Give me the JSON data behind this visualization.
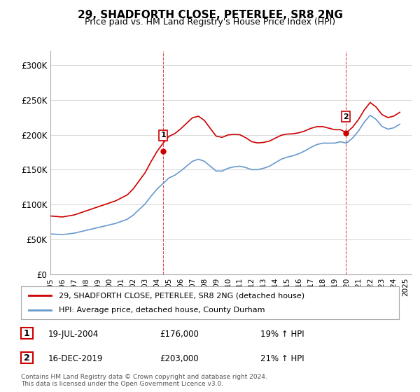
{
  "title": "29, SHADFORTH CLOSE, PETERLEE, SR8 2NG",
  "subtitle": "Price paid vs. HM Land Registry's House Price Index (HPI)",
  "legend_line1": "29, SHADFORTH CLOSE, PETERLEE, SR8 2NG (detached house)",
  "legend_line2": "HPI: Average price, detached house, County Durham",
  "footer": "Contains HM Land Registry data © Crown copyright and database right 2024.\nThis data is licensed under the Open Government Licence v3.0.",
  "annotation1_label": "1",
  "annotation1_date": "19-JUL-2004",
  "annotation1_price": "£176,000",
  "annotation1_hpi": "19% ↑ HPI",
  "annotation2_label": "2",
  "annotation2_date": "16-DEC-2019",
  "annotation2_price": "£203,000",
  "annotation2_hpi": "21% ↑ HPI",
  "red_color": "#cc0000",
  "blue_color": "#6699cc",
  "annotation_color": "#cc0000",
  "background_color": "#ffffff",
  "grid_color": "#dddddd",
  "ylim": [
    0,
    320000
  ],
  "yticks": [
    0,
    50000,
    100000,
    150000,
    200000,
    250000,
    300000
  ],
  "ytick_labels": [
    "£0",
    "£50K",
    "£100K",
    "£150K",
    "£200K",
    "£250K",
    "£300K"
  ],
  "hpi_x": [
    1995.0,
    1995.5,
    1996.0,
    1996.5,
    1997.0,
    1997.5,
    1998.0,
    1998.5,
    1999.0,
    1999.5,
    2000.0,
    2000.5,
    2001.0,
    2001.5,
    2002.0,
    2002.5,
    2003.0,
    2003.5,
    2004.0,
    2004.5,
    2005.0,
    2005.5,
    2006.0,
    2006.5,
    2007.0,
    2007.5,
    2008.0,
    2008.5,
    2009.0,
    2009.5,
    2010.0,
    2010.5,
    2011.0,
    2011.5,
    2012.0,
    2012.5,
    2013.0,
    2013.5,
    2014.0,
    2014.5,
    2015.0,
    2015.5,
    2016.0,
    2016.5,
    2017.0,
    2017.5,
    2018.0,
    2018.5,
    2019.0,
    2019.5,
    2020.0,
    2020.5,
    2021.0,
    2021.5,
    2022.0,
    2022.5,
    2023.0,
    2023.5,
    2024.0,
    2024.5
  ],
  "hpi_y": [
    58000,
    57500,
    57000,
    58000,
    59000,
    61000,
    63000,
    65000,
    67000,
    69000,
    71000,
    73000,
    76000,
    79000,
    85000,
    93000,
    101000,
    112000,
    122000,
    130000,
    138000,
    142000,
    148000,
    155000,
    162000,
    165000,
    162000,
    155000,
    148000,
    148000,
    152000,
    154000,
    155000,
    153000,
    150000,
    150000,
    152000,
    155000,
    160000,
    165000,
    168000,
    170000,
    173000,
    177000,
    182000,
    186000,
    188000,
    188000,
    188000,
    190000,
    188000,
    195000,
    205000,
    218000,
    228000,
    222000,
    212000,
    208000,
    210000,
    215000
  ],
  "price_points_x": [
    2004.54,
    2019.96
  ],
  "price_points_y": [
    176000,
    203000
  ],
  "vline1_x": 2004.54,
  "vline2_x": 2019.96,
  "xtick_positions": [
    1995,
    1996,
    1997,
    1998,
    1999,
    2000,
    2001,
    2002,
    2003,
    2004,
    2005,
    2006,
    2007,
    2008,
    2009,
    2010,
    2011,
    2012,
    2013,
    2014,
    2015,
    2016,
    2017,
    2018,
    2019,
    2020,
    2021,
    2022,
    2023,
    2024,
    2025
  ]
}
